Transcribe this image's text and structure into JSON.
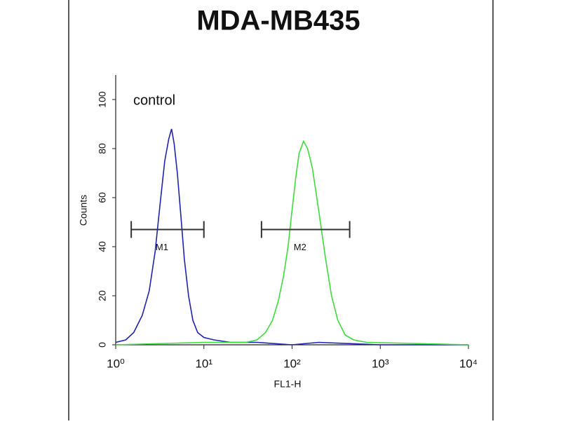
{
  "chart_data": {
    "type": "line",
    "title": "MDA-MB435",
    "xlabel": "FL1-H",
    "ylabel": "Counts",
    "annotation": "control",
    "xscale": "log",
    "xlim": [
      1,
      10000
    ],
    "xticks": [
      {
        "value": 1,
        "label": "10⁰"
      },
      {
        "value": 10,
        "label": "10¹"
      },
      {
        "value": 100,
        "label": "10²"
      },
      {
        "value": 1000,
        "label": "10³"
      },
      {
        "value": 10000,
        "label": "10⁴"
      }
    ],
    "ylim": [
      0,
      110
    ],
    "yticks": [
      0,
      20,
      40,
      60,
      80,
      100
    ],
    "series": [
      {
        "color": "#1f24b0",
        "x": [
          1,
          1.3,
          1.6,
          2,
          2.4,
          2.8,
          3.2,
          3.6,
          4,
          4.3,
          4.6,
          5,
          5.5,
          6,
          6.7,
          7.5,
          8.5,
          10,
          13,
          20,
          40,
          100,
          200,
          1000,
          10000
        ],
        "values": [
          1,
          2,
          5,
          12,
          22,
          38,
          58,
          75,
          84,
          88,
          82,
          70,
          52,
          35,
          20,
          10,
          5,
          3,
          2,
          1,
          1,
          0,
          1,
          0,
          0
        ]
      },
      {
        "color": "#3ddc3d",
        "x": [
          1,
          10,
          30,
          40,
          50,
          60,
          70,
          80,
          90,
          100,
          110,
          120,
          135,
          150,
          170,
          200,
          240,
          280,
          330,
          400,
          500,
          700,
          10000
        ],
        "values": [
          0,
          1,
          1,
          2,
          5,
          10,
          18,
          28,
          40,
          55,
          68,
          78,
          83,
          80,
          72,
          55,
          35,
          20,
          10,
          4,
          2,
          1,
          0
        ]
      }
    ],
    "gates": [
      {
        "label": "M1",
        "range": [
          1.5,
          10
        ],
        "y": 47
      },
      {
        "label": "M2",
        "range": [
          45,
          450
        ],
        "y": 47
      }
    ]
  }
}
